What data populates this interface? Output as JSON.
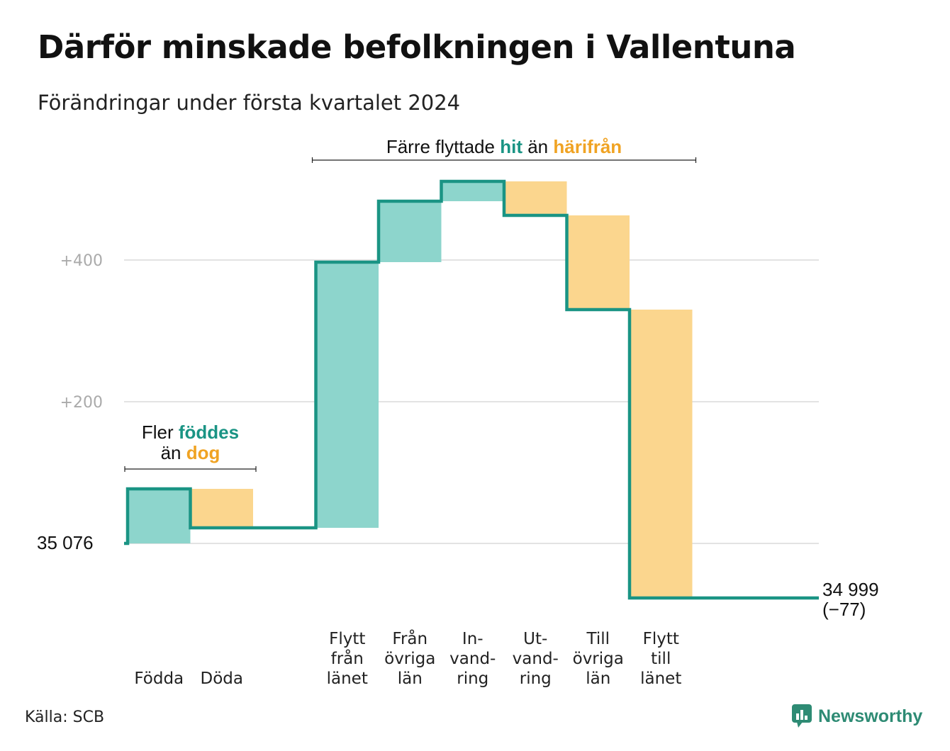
{
  "title": "Därför minskade befolkningen i Vallentuna",
  "subtitle": "Förändringar under första kvartalet 2024",
  "source": "Källa: SCB",
  "brand": "Newsworthy",
  "colors": {
    "increase": "#8dd5cc",
    "decrease": "#fbd68e",
    "line": "#1a9484",
    "increase_text": "#1a9484",
    "decrease_text": "#f0a323",
    "grid": "#e3e3e3",
    "tick_text": "#aaaaaa"
  },
  "chart_data": {
    "type": "waterfall",
    "start_label": "35 076",
    "end_label": "34 999",
    "end_change_label": "(−77)",
    "start_value": 35076,
    "end_value": 34999,
    "y_relative_ticks": [
      "+400",
      "+200"
    ],
    "y_relative_tick_values": [
      400,
      200
    ],
    "ylim_relative": [
      -90,
      520
    ],
    "categories": [
      [
        "Födda"
      ],
      [
        "Döda"
      ],
      [],
      [
        "Flytt",
        "från",
        "länet"
      ],
      [
        "Från",
        "övriga",
        "län"
      ],
      [
        "In-",
        "vand-",
        "ring"
      ],
      [
        "Ut-",
        "vand-",
        "ring"
      ],
      [
        "Till",
        "övriga",
        "län"
      ],
      [
        "Flytt",
        "till",
        "länet"
      ],
      []
    ],
    "changes": [
      77,
      -55,
      0,
      375,
      86,
      28,
      -48,
      -133,
      -407,
      0
    ],
    "grid": true,
    "annotations": [
      {
        "parts": [
          {
            "text": "Fler ",
            "style": "normal"
          },
          {
            "text": "föddes",
            "style": "increase"
          }
        ],
        "parts2": [
          {
            "text": "än ",
            "style": "normal"
          },
          {
            "text": "dog",
            "style": "decrease"
          }
        ],
        "span": [
          0,
          1
        ]
      },
      {
        "parts": [
          {
            "text": "Färre flyttade ",
            "style": "normal"
          },
          {
            "text": "hit",
            "style": "increase"
          },
          {
            "text": " än ",
            "style": "normal"
          },
          {
            "text": "härifrån",
            "style": "decrease"
          }
        ],
        "span": [
          3,
          8
        ]
      }
    ]
  }
}
